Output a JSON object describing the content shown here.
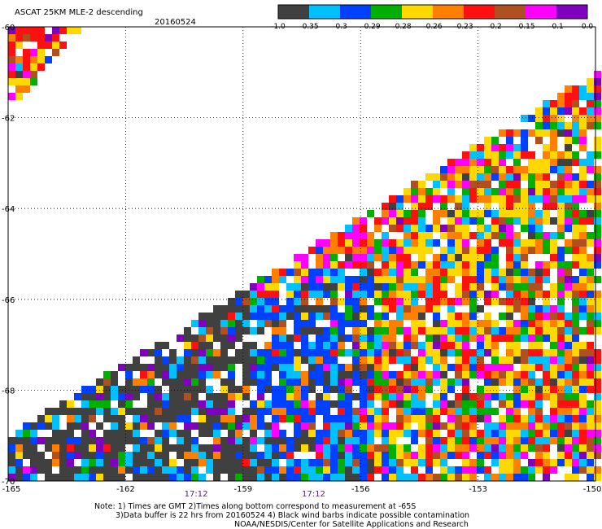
{
  "header": {
    "title": "ASCAT 25KM MLE-2 descending",
    "date": "20160524"
  },
  "colorbar": {
    "swatches": [
      "#404040",
      "#00c0ff",
      "#0040ff",
      "#00b000",
      "#ffd800",
      "#ff8000",
      "#ff1010",
      "#b05020",
      "#ff00ff",
      "#8000c0"
    ],
    "labels": [
      "-1.0",
      "-0.35",
      "-0.3",
      "-0.29",
      "-0.28",
      "-0.26",
      "-0.23",
      "-0.2",
      "-0.15",
      "-0.1",
      "0.0"
    ]
  },
  "map": {
    "lon_ticks": [
      "-165",
      "-162",
      "-159",
      "-156",
      "-153",
      "-150"
    ],
    "lat_ticks": [
      "-60",
      "-62",
      "-64",
      "-66",
      "-68",
      "-70"
    ],
    "lon_range": [
      -165,
      -150
    ],
    "lat_range": [
      -70,
      -60
    ],
    "gridlines": true,
    "time_labels": [
      {
        "text": "17:12",
        "lon": -160.2
      },
      {
        "text": "17:12",
        "lon": -157.2
      }
    ],
    "missing_color": "#ffffff"
  },
  "footer": {
    "line1": "Note: 1) Times are GMT 2)Times along bottom correspond to measurement at -65S",
    "line2": "3)Data buffer is 22 hrs from 20160524 4) Black wind barbs indicate possible contamination",
    "line3": "NOAA/NESDIS/Center for Satellite Applications and Research"
  }
}
